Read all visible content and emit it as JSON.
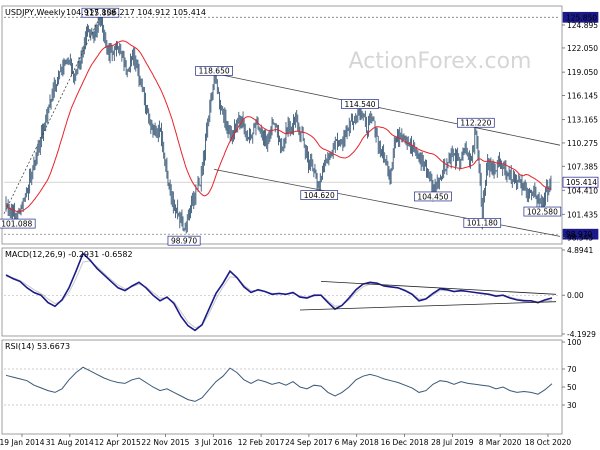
{
  "chart_data": [
    {
      "type": "candlestick",
      "title": "USDJPY,Weekly",
      "ohlc_readout": "104.917 106.217 104.912 105.414",
      "watermark": "ActionForex.com",
      "x_ticks": [
        "19 Jan 2014",
        "31 Aug 2014",
        "12 Apr 2015",
        "22 Nov 2015",
        "3 Jul 2016",
        "12 Feb 2017",
        "24 Sep 2017",
        "6 May 2018",
        "16 Dec 2018",
        "28 Jul 2019",
        "8 Mar 2020",
        "18 Oct 2020"
      ],
      "y_ticks": [
        124.895,
        122.05,
        119.05,
        116.145,
        113.165,
        110.275,
        107.385,
        104.41,
        101.435,
        98.545
      ],
      "ylim": [
        98.0,
        127.0
      ],
      "last_price": 105.414,
      "price_labels": [
        {
          "text": "125.858",
          "value": 125.858
        },
        {
          "text": "118.650",
          "value": 118.65
        },
        {
          "text": "114.540",
          "value": 114.54
        },
        {
          "text": "112.220",
          "value": 112.22
        },
        {
          "text": "104.620",
          "value": 104.62
        },
        {
          "text": "104.450",
          "value": 104.45
        },
        {
          "text": "102.580",
          "value": 102.58
        },
        {
          "text": "101.180",
          "value": 101.18
        },
        {
          "text": "101.088",
          "value": 101.088
        },
        {
          "text": "98.970",
          "value": 98.97
        }
      ],
      "right_labels": [
        {
          "text": "125.850",
          "value": 125.85
        },
        {
          "text": "105.414",
          "value": 105.414
        },
        {
          "text": "98.970",
          "value": 98.97
        }
      ],
      "colors": {
        "price": "#3a5a78",
        "ma": "#e8232a",
        "channel": "#444444",
        "label_border": "#1c2a8a",
        "accent": "#1a1a8a"
      }
    },
    {
      "type": "line",
      "title": "MACD(12,26,9) -0.2931 -0.6582",
      "y_ticks": [
        "4.8941",
        "0.00",
        "-4.1929"
      ],
      "ylim": [
        -4.1929,
        4.8941
      ],
      "series": [
        {
          "values": [
            2.2,
            1.8,
            1.5,
            0.8,
            0.3,
            0.0,
            -0.8,
            -1.2,
            -0.5,
            0.8,
            2.6,
            4.5,
            3.8,
            2.9,
            2.2,
            1.5,
            0.8,
            0.5,
            1.0,
            1.4,
            0.8,
            0.0,
            -0.6,
            -0.2,
            -0.9,
            -2.3,
            -3.3,
            -3.8,
            -3.2,
            -1.5,
            0.2,
            1.3,
            2.6,
            1.9,
            0.9,
            0.3,
            0.6,
            0.4,
            0.1,
            0.2,
            0.1,
            0.3,
            -0.2,
            -0.3,
            0.0,
            0.0,
            -0.8,
            -1.5,
            -1.1,
            -0.3,
            0.6,
            1.2,
            1.4,
            1.3,
            1.0,
            0.9,
            0.8,
            0.5,
            0.1,
            -0.6,
            -0.4,
            0.2,
            0.7,
            0.6,
            0.4,
            0.5,
            0.4,
            0.3,
            0.2,
            0.1,
            -0.1,
            0.0,
            -0.3,
            -0.5,
            -0.6,
            -0.6,
            -0.8,
            -0.5,
            -0.3
          ]
        },
        {
          "values": [
            2.0,
            1.9,
            1.6,
            1.1,
            0.6,
            0.2,
            -0.4,
            -0.9,
            -0.6,
            0.3,
            1.8,
            3.6,
            3.7,
            3.1,
            2.4,
            1.7,
            1.1,
            0.7,
            0.9,
            1.2,
            0.9,
            0.3,
            -0.3,
            -0.3,
            -0.7,
            -1.8,
            -2.9,
            -3.5,
            -3.3,
            -2.0,
            -0.4,
            0.9,
            2.0,
            1.9,
            1.1,
            0.5,
            0.5,
            0.4,
            0.2,
            0.2,
            0.1,
            0.2,
            -0.1,
            -0.2,
            -0.1,
            0.0,
            -0.6,
            -1.2,
            -1.1,
            -0.5,
            0.3,
            0.9,
            1.2,
            1.2,
            1.1,
            0.9,
            0.8,
            0.6,
            0.2,
            -0.4,
            -0.4,
            0.0,
            0.5,
            0.5,
            0.4,
            0.4,
            0.4,
            0.3,
            0.2,
            0.1,
            0.0,
            0.0,
            -0.2,
            -0.4,
            -0.5,
            -0.6,
            -0.7,
            -0.6,
            -0.6
          ]
        }
      ],
      "colors": {
        "macd": "#1a1a8a",
        "signal": "#c8c8c8",
        "trend": "#222222"
      }
    },
    {
      "type": "line",
      "title": "RSI(14) 53.6673",
      "y_ticks": [
        "100",
        "70",
        "50",
        "30"
      ],
      "ylim": [
        0,
        100
      ],
      "values": [
        63,
        61,
        59,
        57,
        52,
        49,
        46,
        44,
        48,
        58,
        66,
        72,
        68,
        64,
        60,
        57,
        55,
        54,
        58,
        60,
        55,
        50,
        46,
        48,
        44,
        40,
        36,
        34,
        38,
        47,
        56,
        62,
        71,
        66,
        58,
        54,
        58,
        56,
        53,
        55,
        52,
        56,
        50,
        48,
        52,
        51,
        44,
        40,
        44,
        50,
        58,
        62,
        64,
        62,
        59,
        57,
        55,
        52,
        49,
        44,
        46,
        53,
        57,
        56,
        53,
        56,
        54,
        53,
        52,
        51,
        48,
        50,
        46,
        44,
        45,
        44,
        42,
        47,
        53.6673
      ],
      "colors": {
        "rsi": "#3a5a78",
        "levels": "#999999"
      }
    }
  ]
}
